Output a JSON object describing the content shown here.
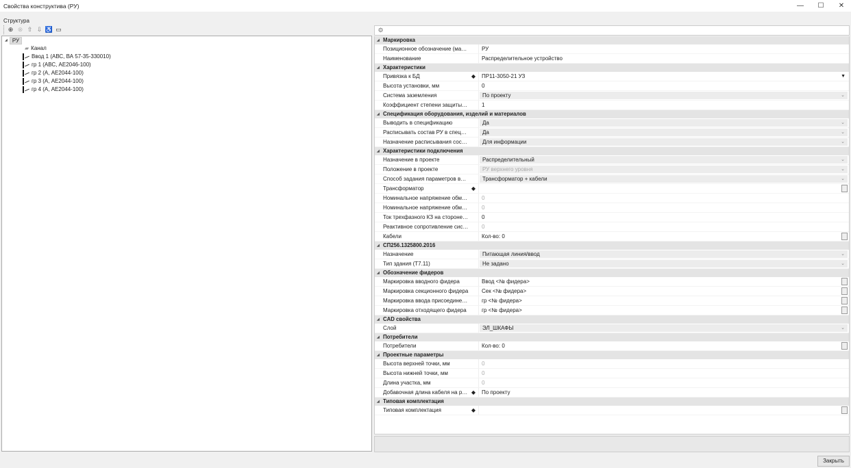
{
  "window": {
    "title": "Свойства конструктива (РУ)",
    "minimize": "—",
    "maximize": "☐",
    "close": "✕"
  },
  "structure": {
    "label": "Структура",
    "toolbar": [
      "add-icon",
      "remove-icon",
      "move-up-icon",
      "move-down-icon",
      "properties-icon",
      "rename-icon"
    ],
    "root": "РУ",
    "children": [
      "Канал",
      "Ввод 1 (АВС, ВА 57-35-330010)",
      "гр 1 (АВС, АЕ2046-100)",
      "гр 2 (А, АЕ2044-100)",
      "гр 3 (А, АЕ2044-100)",
      "гр 4 (А, АЕ2044-100)"
    ]
  },
  "grid": {
    "sections": [
      {
        "title": "Маркировка",
        "rows": [
          {
            "label": "Позиционное обозначение (маркировка)",
            "value": "РУ",
            "type": "text"
          },
          {
            "label": "Наименование",
            "value": "Распределительное устройство",
            "type": "text"
          }
        ]
      },
      {
        "title": "Характеристики",
        "rows": [
          {
            "label": "Привязка к БД",
            "value": "ПР11-3050-21 УЗ",
            "type": "dd",
            "marker": true
          },
          {
            "label": "Высота установки, мм",
            "value": "0",
            "type": "text"
          },
          {
            "label": "Система заземления",
            "value": "По проекту",
            "type": "combo"
          },
          {
            "label": "Коэффициент степени защиты Кст, о.е.",
            "value": "1",
            "type": "text"
          }
        ]
      },
      {
        "title": "Спецификация оборудования, изделий и материалов",
        "rows": [
          {
            "label": "Выводить в спецификацию",
            "value": "Да",
            "type": "combo"
          },
          {
            "label": "Расписывать состав РУ в спецификации",
            "value": "Да",
            "type": "combo"
          },
          {
            "label": "Назначение расписывания состава РУ",
            "value": "Для информации",
            "type": "combo"
          }
        ]
      },
      {
        "title": "Характеристики подключения",
        "rows": [
          {
            "label": "Назначение в проекте",
            "value": "Распределительный",
            "type": "combo"
          },
          {
            "label": "Положение в проекте",
            "value": "РУ верхнего уровня",
            "type": "combo-dis"
          },
          {
            "label": "Способ задания параметров вышестоя...",
            "value": "Трансформатор + кабели",
            "type": "combo"
          },
          {
            "label": "Трансформатор",
            "value": "",
            "type": "button",
            "marker": true
          },
          {
            "label": "Номинальное напряжение обмотки ВН,...",
            "value": "0",
            "type": "dis"
          },
          {
            "label": "Номинальное напряжение обмотки НН,...",
            "value": "0",
            "type": "dis"
          },
          {
            "label": "Ток трехфазного КЗ на стороне ВН, кА",
            "value": "0",
            "type": "text"
          },
          {
            "label": "Реактивное сопротивление системы Хс...",
            "value": "0",
            "type": "dis"
          },
          {
            "label": "Кабели",
            "value": "Кол-во: 0",
            "type": "button"
          }
        ]
      },
      {
        "title": "СП256.1325800.2016",
        "rows": [
          {
            "label": "Назначение",
            "value": "Питающая линия/ввод",
            "type": "combo"
          },
          {
            "label": "Тип здания (Т7.11)",
            "value": "Не задано",
            "type": "combo"
          }
        ]
      },
      {
        "title": "Обозначение фидеров",
        "rows": [
          {
            "label": "Маркировка вводного фидера",
            "value": "Ввод <№ фидера>",
            "type": "button"
          },
          {
            "label": "Маркировка секционного фидера",
            "value": "Сек <№ фидера>",
            "type": "button"
          },
          {
            "label": "Маркировка ввода присоединений",
            "value": "гр <№ фидера>",
            "type": "button"
          },
          {
            "label": "Маркировка отходящего фидера",
            "value": "гр <№ фидера>",
            "type": "button"
          }
        ]
      },
      {
        "title": "CAD свойства",
        "rows": [
          {
            "label": "Слой",
            "value": "ЭЛ_ШКАФЫ",
            "type": "combo"
          }
        ]
      },
      {
        "title": "Потребители",
        "rows": [
          {
            "label": "Потребители",
            "value": "Кол-во: 0",
            "type": "button"
          }
        ]
      },
      {
        "title": "Проектные параметры",
        "rows": [
          {
            "label": "Высота верхней точки, мм",
            "value": "0",
            "type": "dis"
          },
          {
            "label": "Высота нижней точки, мм",
            "value": "0",
            "type": "dis"
          },
          {
            "label": "Длина участка, мм",
            "value": "0",
            "type": "dis"
          },
          {
            "label": "Добавочная длина кабеля на разд...",
            "value": "По проекту",
            "type": "text",
            "marker": true
          }
        ]
      },
      {
        "title": "Типовая комплектация",
        "rows": [
          {
            "label": "Типовая комплектация",
            "value": "",
            "type": "button",
            "marker": true
          }
        ]
      }
    ]
  },
  "footer": {
    "close_label": "Закрыть"
  }
}
